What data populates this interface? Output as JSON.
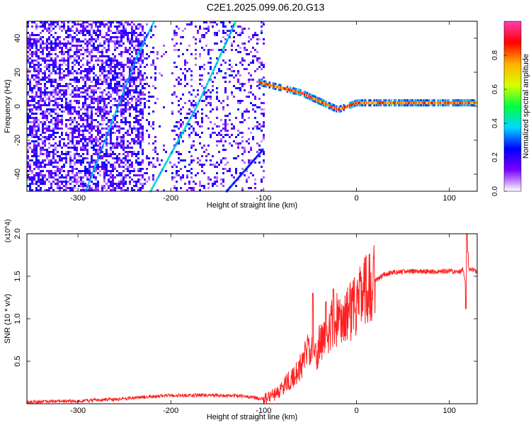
{
  "title": "C2E1.2025.099.06.20.G13",
  "chart_data": [
    {
      "type": "heatmap",
      "xlabel": "Height of straight line (km)",
      "ylabel": "Frequency (Hz)",
      "xlim": [
        -355,
        130
      ],
      "ylim": [
        -50,
        50
      ],
      "xticks": [
        -300,
        -200,
        -100,
        0,
        100
      ],
      "yticks": [
        -40,
        -20,
        0,
        20,
        40
      ],
      "colorbar": {
        "label": "Normalized spectral amplitude",
        "range": [
          0,
          1
        ],
        "ticks": [
          "0.0",
          "0.2",
          "0.4",
          "0.6",
          "0.8"
        ],
        "colors": [
          "#ffffff",
          "#7a00ff",
          "#0000ff",
          "#00d8ff",
          "#00ff40",
          "#d8ff00",
          "#ffb000",
          "#ff0000",
          "#ff3cb4"
        ]
      },
      "features": [
        {
          "kind": "chirp",
          "x": [
            -222,
            -172,
            -130
          ],
          "y": [
            -50,
            0,
            50
          ],
          "peak": 0.45
        },
        {
          "kind": "chirp",
          "x": [
            -292,
            -236,
            -218
          ],
          "y": [
            -50,
            30,
            50
          ],
          "peak": 0.4
        },
        {
          "kind": "chirp",
          "x": [
            -140,
            -100
          ],
          "y": [
            -50,
            -25
          ],
          "peak": 0.3
        },
        {
          "kind": "carrier",
          "x": [
            -105,
            -60,
            -20,
            0,
            60,
            130
          ],
          "y": [
            14,
            8,
            -2,
            2,
            2,
            2
          ],
          "peak": 0.95
        }
      ]
    },
    {
      "type": "line",
      "xlabel": "Height of straight line (km)",
      "ylabel": "SNR (10 * v/v)",
      "y_multiplier": "(x10^4)",
      "xlim": [
        -355,
        130
      ],
      "ylim": [
        0,
        2.0
      ],
      "xticks": [
        -300,
        -200,
        -100,
        0,
        100
      ],
      "yticks": [
        "0.5",
        "1.0",
        "1.5",
        "2.0"
      ],
      "color": "#ff2020",
      "series": [
        {
          "x": [
            -355,
            -300,
            -250,
            -200,
            -150,
            -120,
            -100,
            -90,
            -80,
            -70,
            -60,
            -55,
            -50,
            -45,
            -40,
            -35,
            -30,
            -25,
            -20,
            -15,
            -10,
            -5,
            0,
            5,
            10,
            15,
            20,
            30,
            40,
            60,
            80,
            100,
            110,
            115,
            118,
            120,
            125,
            130
          ],
          "y": [
            0.02,
            0.03,
            0.06,
            0.1,
            0.1,
            0.09,
            0.05,
            0.1,
            0.18,
            0.3,
            0.45,
            0.55,
            0.7,
            0.5,
            0.7,
            0.75,
            0.85,
            0.95,
            1.0,
            0.95,
            1.05,
            1.1,
            1.15,
            1.25,
            1.35,
            1.4,
            1.45,
            1.52,
            1.55,
            1.56,
            1.55,
            1.56,
            1.55,
            1.58,
            1.4,
            1.6,
            1.58,
            1.55
          ]
        }
      ],
      "spikes": [
        {
          "x": -47,
          "y": 1.3
        },
        {
          "x": -33,
          "y": 1.2
        },
        {
          "x": -25,
          "y": 1.35
        },
        {
          "x": 119,
          "y": 2.0
        },
        {
          "x": 118,
          "y": 1.12
        },
        {
          "x": 120,
          "y": 1.78
        }
      ]
    }
  ]
}
